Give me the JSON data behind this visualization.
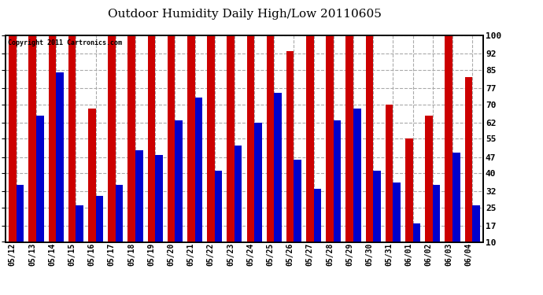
{
  "title": "Outdoor Humidity Daily High/Low 20110605",
  "copyright": "Copyright 2011 Cartronics.com",
  "dates": [
    "05/12",
    "05/13",
    "05/14",
    "05/15",
    "05/16",
    "05/17",
    "05/18",
    "05/19",
    "05/20",
    "05/21",
    "05/22",
    "05/23",
    "05/24",
    "05/25",
    "05/26",
    "05/27",
    "05/28",
    "05/29",
    "05/30",
    "05/31",
    "06/01",
    "06/02",
    "06/03",
    "06/04"
  ],
  "highs": [
    100,
    100,
    100,
    100,
    68,
    100,
    100,
    100,
    100,
    100,
    100,
    100,
    100,
    100,
    93,
    100,
    100,
    100,
    100,
    70,
    55,
    65,
    100,
    82
  ],
  "lows": [
    35,
    65,
    84,
    26,
    30,
    35,
    50,
    48,
    63,
    73,
    41,
    52,
    62,
    75,
    46,
    33,
    63,
    68,
    41,
    36,
    18,
    35,
    49,
    26
  ],
  "high_color": "#cc0000",
  "low_color": "#0000cc",
  "bg_color": "#ffffff",
  "ylabel_right": [
    "10",
    "17",
    "25",
    "32",
    "40",
    "47",
    "55",
    "62",
    "70",
    "77",
    "85",
    "92",
    "100"
  ],
  "yticks_right": [
    10,
    17,
    25,
    32,
    40,
    47,
    55,
    62,
    70,
    77,
    85,
    92,
    100
  ],
  "ymin": 10,
  "ymax": 100,
  "bar_width": 0.38,
  "title_fontsize": 11,
  "copyright_fontsize": 6,
  "tick_fontsize": 7,
  "grid_color": "#aaaaaa",
  "border_color": "#000000"
}
